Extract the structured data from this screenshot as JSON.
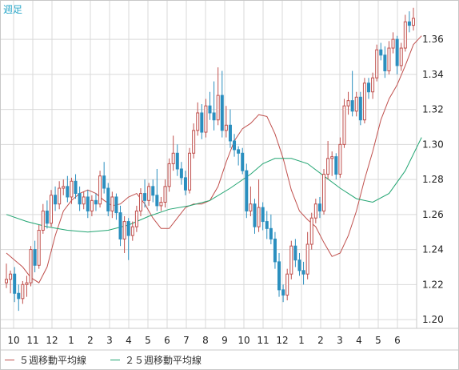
{
  "header": {
    "period_label": "週足"
  },
  "legend": {
    "ma5": {
      "label": "５週移動平均線",
      "color": "#c0504d"
    },
    "ma25": {
      "label": "２５週移動平均線",
      "color": "#22a572"
    }
  },
  "colors": {
    "up": "#c0504d",
    "down": "#2b8fbf",
    "grid": "#d9d9d9",
    "axis": "#c8c8c8",
    "tick_text": "#222222"
  },
  "chart_data": {
    "type": "candlestick",
    "title": "",
    "xlabel": "",
    "ylabel": "",
    "ylim": [
      1.195,
      1.382
    ],
    "y_ticks": [
      "1.36",
      "1.34",
      "1.32",
      "1.30",
      "1.28",
      "1.26",
      "1.24",
      "1.22",
      "1.20"
    ],
    "x_month_labels": [
      "10",
      "11",
      "12",
      "1",
      "2",
      "3",
      "4",
      "5",
      "6",
      "7",
      "8",
      "9",
      "10",
      "11",
      "12",
      "1",
      "2",
      "3",
      "4",
      "5",
      "6"
    ],
    "grid": true,
    "series": [
      {
        "name": "５週移動平均線",
        "type": "line",
        "color": "#c0504d",
        "points": [
          [
            0,
            1.238
          ],
          [
            2,
            1.234
          ],
          [
            4,
            1.23
          ],
          [
            6,
            1.224
          ],
          [
            8,
            1.221
          ],
          [
            10,
            1.23
          ],
          [
            12,
            1.248
          ],
          [
            14,
            1.262
          ],
          [
            16,
            1.268
          ],
          [
            18,
            1.272
          ],
          [
            20,
            1.274
          ],
          [
            22,
            1.272
          ],
          [
            24,
            1.268
          ],
          [
            26,
            1.265
          ],
          [
            28,
            1.266
          ],
          [
            30,
            1.27
          ],
          [
            32,
            1.272
          ],
          [
            34,
            1.266
          ],
          [
            36,
            1.258
          ],
          [
            38,
            1.252
          ],
          [
            40,
            1.252
          ],
          [
            42,
            1.258
          ],
          [
            44,
            1.264
          ],
          [
            46,
            1.266
          ],
          [
            48,
            1.266
          ],
          [
            50,
            1.268
          ],
          [
            52,
            1.276
          ],
          [
            54,
            1.29
          ],
          [
            56,
            1.302
          ],
          [
            58,
            1.309
          ],
          [
            60,
            1.312
          ],
          [
            62,
            1.317
          ],
          [
            64,
            1.316
          ],
          [
            66,
            1.306
          ],
          [
            68,
            1.292
          ],
          [
            70,
            1.274
          ],
          [
            72,
            1.262
          ],
          [
            74,
            1.257
          ],
          [
            76,
            1.253
          ],
          [
            78,
            1.244
          ],
          [
            80,
            1.236
          ],
          [
            82,
            1.238
          ],
          [
            84,
            1.248
          ],
          [
            86,
            1.262
          ],
          [
            88,
            1.28
          ],
          [
            90,
            1.296
          ],
          [
            92,
            1.314
          ],
          [
            94,
            1.326
          ],
          [
            96,
            1.334
          ],
          [
            98,
            1.345
          ],
          [
            100,
            1.357
          ],
          [
            102,
            1.362
          ]
        ]
      },
      {
        "name": "２５週移動平均線",
        "type": "line",
        "color": "#22a572",
        "points": [
          [
            0,
            1.26
          ],
          [
            5,
            1.256
          ],
          [
            10,
            1.253
          ],
          [
            15,
            1.251
          ],
          [
            20,
            1.25
          ],
          [
            25,
            1.251
          ],
          [
            30,
            1.254
          ],
          [
            35,
            1.259
          ],
          [
            40,
            1.263
          ],
          [
            45,
            1.265
          ],
          [
            50,
            1.268
          ],
          [
            55,
            1.275
          ],
          [
            60,
            1.283
          ],
          [
            63,
            1.289
          ],
          [
            66,
            1.292
          ],
          [
            70,
            1.292
          ],
          [
            74,
            1.289
          ],
          [
            78,
            1.282
          ],
          [
            82,
            1.275
          ],
          [
            86,
            1.269
          ],
          [
            90,
            1.267
          ],
          [
            94,
            1.272
          ],
          [
            98,
            1.285
          ],
          [
            102,
            1.304
          ]
        ]
      },
      {
        "name": "candles",
        "type": "ohlc",
        "ohlc": [
          [
            1.221,
            1.223,
            1.232,
            1.218
          ],
          [
            1.223,
            1.226,
            1.228,
            1.215
          ],
          [
            1.226,
            1.215,
            1.23,
            1.21
          ],
          [
            1.215,
            1.212,
            1.22,
            1.205
          ],
          [
            1.212,
            1.22,
            1.222,
            1.209
          ],
          [
            1.22,
            1.221,
            1.225,
            1.213
          ],
          [
            1.221,
            1.24,
            1.242,
            1.219
          ],
          [
            1.24,
            1.231,
            1.245,
            1.227
          ],
          [
            1.231,
            1.251,
            1.254,
            1.229
          ],
          [
            1.251,
            1.262,
            1.266,
            1.249
          ],
          [
            1.262,
            1.255,
            1.268,
            1.252
          ],
          [
            1.255,
            1.271,
            1.274,
            1.253
          ],
          [
            1.271,
            1.266,
            1.276,
            1.262
          ],
          [
            1.266,
            1.275,
            1.279,
            1.263
          ],
          [
            1.275,
            1.276,
            1.28,
            1.271
          ],
          [
            1.276,
            1.27,
            1.282,
            1.267
          ],
          [
            1.27,
            1.279,
            1.281,
            1.266
          ],
          [
            1.279,
            1.272,
            1.283,
            1.269
          ],
          [
            1.272,
            1.266,
            1.276,
            1.262
          ],
          [
            1.266,
            1.27,
            1.273,
            1.263
          ],
          [
            1.27,
            1.262,
            1.274,
            1.258
          ],
          [
            1.262,
            1.268,
            1.271,
            1.259
          ],
          [
            1.268,
            1.266,
            1.272,
            1.262
          ],
          [
            1.266,
            1.282,
            1.285,
            1.264
          ],
          [
            1.282,
            1.275,
            1.29,
            1.272
          ],
          [
            1.275,
            1.262,
            1.278,
            1.259
          ],
          [
            1.262,
            1.27,
            1.273,
            1.258
          ],
          [
            1.27,
            1.261,
            1.272,
            1.257
          ],
          [
            1.261,
            1.246,
            1.265,
            1.242
          ],
          [
            1.246,
            1.256,
            1.259,
            1.238
          ],
          [
            1.256,
            1.248,
            1.258,
            1.234
          ],
          [
            1.248,
            1.253,
            1.256,
            1.245
          ],
          [
            1.253,
            1.262,
            1.265,
            1.25
          ],
          [
            1.262,
            1.272,
            1.275,
            1.259
          ],
          [
            1.272,
            1.268,
            1.28,
            1.264
          ],
          [
            1.268,
            1.276,
            1.278,
            1.265
          ],
          [
            1.276,
            1.271,
            1.28,
            1.267
          ],
          [
            1.271,
            1.265,
            1.286,
            1.262
          ],
          [
            1.265,
            1.267,
            1.27,
            1.262
          ],
          [
            1.267,
            1.276,
            1.28,
            1.264
          ],
          [
            1.276,
            1.289,
            1.292,
            1.273
          ],
          [
            1.289,
            1.295,
            1.305,
            1.285
          ],
          [
            1.295,
            1.286,
            1.3,
            1.282
          ],
          [
            1.286,
            1.281,
            1.29,
            1.277
          ],
          [
            1.281,
            1.274,
            1.285,
            1.271
          ],
          [
            1.274,
            1.295,
            1.298,
            1.272
          ],
          [
            1.295,
            1.308,
            1.312,
            1.292
          ],
          [
            1.308,
            1.318,
            1.324,
            1.305
          ],
          [
            1.318,
            1.307,
            1.323,
            1.303
          ],
          [
            1.307,
            1.322,
            1.326,
            1.304
          ],
          [
            1.322,
            1.318,
            1.33,
            1.314
          ],
          [
            1.318,
            1.314,
            1.336,
            1.308
          ],
          [
            1.314,
            1.328,
            1.344,
            1.311
          ],
          [
            1.328,
            1.308,
            1.342,
            1.304
          ],
          [
            1.308,
            1.311,
            1.322,
            1.304
          ],
          [
            1.311,
            1.302,
            1.32,
            1.298
          ],
          [
            1.302,
            1.297,
            1.306,
            1.293
          ],
          [
            1.297,
            1.295,
            1.299,
            1.288
          ],
          [
            1.295,
            1.285,
            1.298,
            1.283
          ],
          [
            1.285,
            1.262,
            1.289,
            1.258
          ],
          [
            1.262,
            1.266,
            1.276,
            1.259
          ],
          [
            1.266,
            1.253,
            1.269,
            1.249
          ],
          [
            1.253,
            1.264,
            1.28,
            1.25
          ],
          [
            1.264,
            1.256,
            1.267,
            1.251
          ],
          [
            1.256,
            1.252,
            1.262,
            1.246
          ],
          [
            1.252,
            1.246,
            1.26,
            1.243
          ],
          [
            1.246,
            1.233,
            1.25,
            1.229
          ],
          [
            1.233,
            1.217,
            1.238,
            1.213
          ],
          [
            1.217,
            1.214,
            1.22,
            1.21
          ],
          [
            1.214,
            1.226,
            1.229,
            1.211
          ],
          [
            1.226,
            1.242,
            1.245,
            1.223
          ],
          [
            1.242,
            1.234,
            1.246,
            1.23
          ],
          [
            1.234,
            1.228,
            1.238,
            1.225
          ],
          [
            1.228,
            1.226,
            1.233,
            1.22
          ],
          [
            1.226,
            1.243,
            1.25,
            1.223
          ],
          [
            1.243,
            1.258,
            1.261,
            1.24
          ],
          [
            1.258,
            1.266,
            1.269,
            1.255
          ],
          [
            1.266,
            1.262,
            1.27,
            1.258
          ],
          [
            1.262,
            1.283,
            1.286,
            1.26
          ],
          [
            1.283,
            1.292,
            1.302,
            1.28
          ],
          [
            1.292,
            1.293,
            1.296,
            1.282
          ],
          [
            1.293,
            1.283,
            1.295,
            1.28
          ],
          [
            1.283,
            1.3,
            1.304,
            1.281
          ],
          [
            1.3,
            1.322,
            1.326,
            1.298
          ],
          [
            1.322,
            1.325,
            1.33,
            1.317
          ],
          [
            1.325,
            1.319,
            1.342,
            1.316
          ],
          [
            1.319,
            1.327,
            1.33,
            1.316
          ],
          [
            1.327,
            1.314,
            1.33,
            1.311
          ],
          [
            1.314,
            1.335,
            1.338,
            1.312
          ],
          [
            1.335,
            1.33,
            1.338,
            1.326
          ],
          [
            1.33,
            1.338,
            1.341,
            1.326
          ],
          [
            1.338,
            1.354,
            1.357,
            1.336
          ],
          [
            1.354,
            1.351,
            1.358,
            1.348
          ],
          [
            1.351,
            1.342,
            1.356,
            1.338
          ],
          [
            1.342,
            1.355,
            1.359,
            1.34
          ],
          [
            1.355,
            1.36,
            1.364,
            1.352
          ],
          [
            1.36,
            1.345,
            1.362,
            1.34
          ],
          [
            1.345,
            1.355,
            1.358,
            1.342
          ],
          [
            1.355,
            1.37,
            1.374,
            1.353
          ],
          [
            1.37,
            1.368,
            1.376,
            1.364
          ],
          [
            1.368,
            1.372,
            1.378,
            1.365
          ]
        ]
      }
    ]
  }
}
